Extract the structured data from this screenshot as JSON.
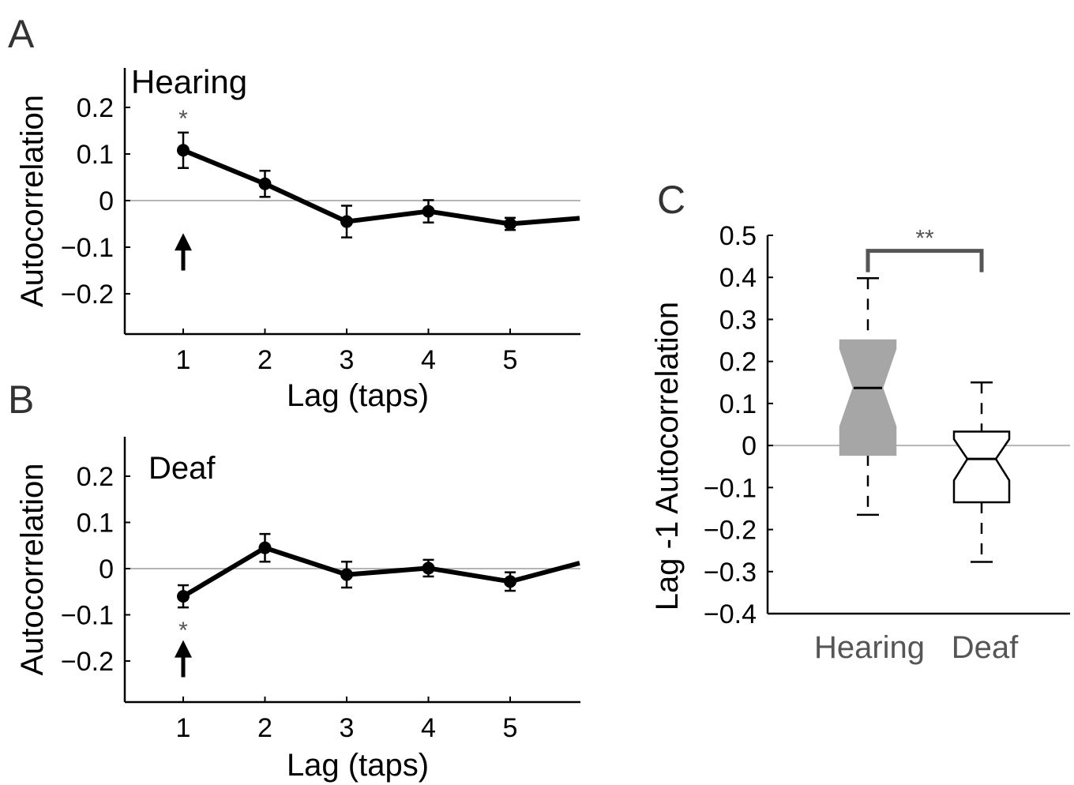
{
  "chart_data": [
    {
      "panel_label": "A",
      "type": "line",
      "title": "Hearing",
      "xlabel": "Lag (taps)",
      "ylabel": "Autocorrelation",
      "xlim": [
        0.3,
        5.85
      ],
      "ylim": [
        -0.29,
        0.29
      ],
      "xticks": [
        1,
        2,
        3,
        4,
        5
      ],
      "xtick_labels": [
        "1",
        "2",
        "3",
        "4",
        "5"
      ],
      "yticks": [
        0.2,
        0.1,
        0,
        -0.1,
        -0.2
      ],
      "ytick_labels": [
        "0.2",
        "0.1",
        "0",
        "−0.1",
        "−0.2"
      ],
      "reference_line": 0,
      "series": [
        {
          "x": [
            1,
            2,
            3,
            4,
            5,
            5.85
          ],
          "y": [
            0.108,
            0.036,
            -0.045,
            -0.023,
            -0.05,
            -0.038
          ],
          "err": [
            0.038,
            0.028,
            0.034,
            0.024,
            0.013,
            null
          ]
        }
      ],
      "annotations": [
        {
          "text": "*",
          "x": 1,
          "y": 0.19
        },
        {
          "text": "arrow-up",
          "x": 1,
          "y_from": -0.15,
          "y_to": -0.07
        }
      ]
    },
    {
      "panel_label": "B",
      "type": "line",
      "title": "Deaf",
      "xlabel": "Lag (taps)",
      "ylabel": "Autocorrelation",
      "xlim": [
        0.3,
        5.85
      ],
      "ylim": [
        -0.29,
        0.29
      ],
      "xticks": [
        1,
        2,
        3,
        4,
        5
      ],
      "xtick_labels": [
        "1",
        "2",
        "3",
        "4",
        "5"
      ],
      "yticks": [
        0.2,
        0.1,
        0,
        -0.1,
        -0.2
      ],
      "ytick_labels": [
        "0.2",
        "0.1",
        "0",
        "−0.1",
        "−0.2"
      ],
      "reference_line": 0,
      "series": [
        {
          "x": [
            1,
            2,
            3,
            4,
            5,
            5.85
          ],
          "y": [
            -0.06,
            0.045,
            -0.013,
            0.001,
            -0.028,
            0.012
          ],
          "err": [
            0.024,
            0.03,
            0.028,
            0.018,
            0.02,
            null
          ]
        }
      ],
      "annotations": [
        {
          "text": "*",
          "x": 1,
          "y": -0.12
        },
        {
          "text": "arrow-up",
          "x": 1,
          "y_from": -0.235,
          "y_to": -0.155
        }
      ]
    },
    {
      "panel_label": "C",
      "type": "box",
      "ylabel": "Lag -1 Autocorrelation",
      "categories": [
        "Hearing",
        "Deaf"
      ],
      "ylim": [
        -0.4,
        0.5
      ],
      "yticks": [
        0.5,
        0.4,
        0.3,
        0.2,
        0.1,
        0,
        -0.1,
        -0.2,
        -0.3,
        -0.4
      ],
      "ytick_labels": [
        "0.5",
        "0.4",
        "0.3",
        "0.2",
        "0.1",
        "0",
        "−0.1",
        "−0.2",
        "−0.3",
        "−0.4"
      ],
      "reference_line": 0,
      "boxes": [
        {
          "name": "Hearing",
          "whisker_low": -0.165,
          "q1": -0.022,
          "notch_low": 0.045,
          "median": 0.137,
          "notch_high": 0.23,
          "q3": 0.25,
          "whisker_high": 0.398,
          "fill": "#a6a6a6"
        },
        {
          "name": "Deaf",
          "whisker_low": -0.277,
          "q1": -0.135,
          "notch_low": -0.083,
          "median": -0.032,
          "notch_high": 0.015,
          "q3": 0.033,
          "whisker_high": 0.15,
          "fill": "#ffffff"
        }
      ],
      "significance": {
        "text": "**",
        "y": 0.48
      }
    }
  ]
}
